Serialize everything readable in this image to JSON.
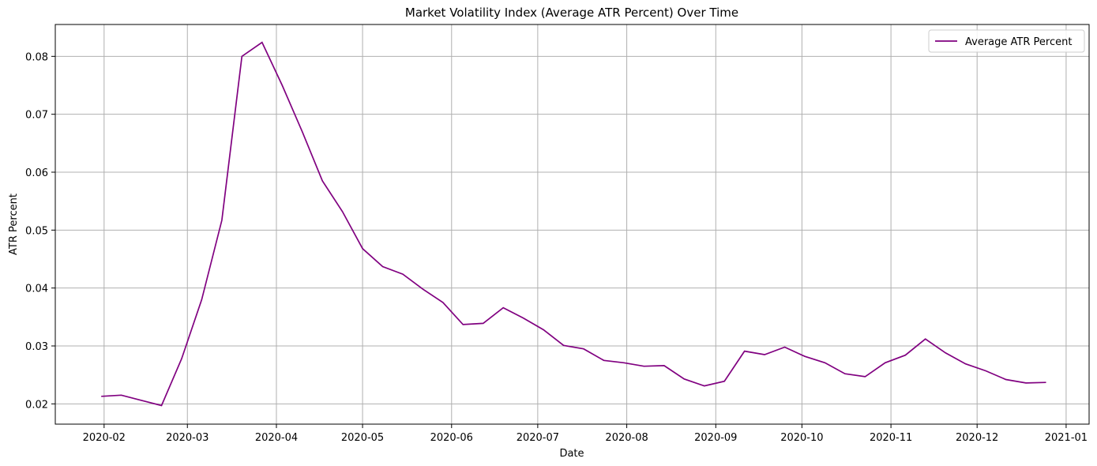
{
  "chart_data": {
    "type": "line",
    "title": "Market Volatility Index (Average ATR Percent) Over Time",
    "xlabel": "Date",
    "ylabel": "ATR Percent",
    "grid": true,
    "legend_position": "top-right",
    "x_ticks": [
      "2020-02",
      "2020-03",
      "2020-04",
      "2020-05",
      "2020-06",
      "2020-07",
      "2020-08",
      "2020-09",
      "2020-10",
      "2020-11",
      "2020-12",
      "2021-01"
    ],
    "y_ticks": [
      "0.02",
      "0.03",
      "0.04",
      "0.05",
      "0.06",
      "0.07",
      "0.08"
    ],
    "ylim": [
      0.0165,
      0.0855
    ],
    "xlim": [
      "2020-01-15",
      "2021-01-09"
    ],
    "series": [
      {
        "name": "Average ATR Percent",
        "color": "#800080",
        "x": [
          "2020-01-31",
          "2020-02-07",
          "2020-02-14",
          "2020-02-21",
          "2020-02-28",
          "2020-03-06",
          "2020-03-13",
          "2020-03-20",
          "2020-03-27",
          "2020-04-03",
          "2020-04-10",
          "2020-04-17",
          "2020-04-24",
          "2020-05-01",
          "2020-05-08",
          "2020-05-15",
          "2020-05-22",
          "2020-05-29",
          "2020-06-05",
          "2020-06-12",
          "2020-06-19",
          "2020-06-26",
          "2020-07-03",
          "2020-07-10",
          "2020-07-17",
          "2020-07-24",
          "2020-07-31",
          "2020-08-07",
          "2020-08-14",
          "2020-08-21",
          "2020-08-28",
          "2020-09-04",
          "2020-09-11",
          "2020-09-18",
          "2020-09-25",
          "2020-10-02",
          "2020-10-09",
          "2020-10-16",
          "2020-10-23",
          "2020-10-30",
          "2020-11-06",
          "2020-11-13",
          "2020-11-20",
          "2020-11-27",
          "2020-12-04",
          "2020-12-11",
          "2020-12-18",
          "2020-12-25"
        ],
        "values": [
          0.0213,
          0.0215,
          0.0206,
          0.0197,
          0.0278,
          0.038,
          0.0517,
          0.08,
          0.0824,
          0.075,
          0.067,
          0.0585,
          0.0532,
          0.0468,
          0.0437,
          0.0424,
          0.0398,
          0.0375,
          0.0337,
          0.0339,
          0.0366,
          0.0348,
          0.0328,
          0.0301,
          0.0295,
          0.0275,
          0.0271,
          0.0265,
          0.0266,
          0.0243,
          0.0231,
          0.0239,
          0.0291,
          0.0285,
          0.0298,
          0.0282,
          0.0271,
          0.0252,
          0.0247,
          0.0271,
          0.0284,
          0.0312,
          0.0288,
          0.0269,
          0.0257,
          0.0242,
          0.0236,
          0.0237
        ]
      }
    ]
  }
}
